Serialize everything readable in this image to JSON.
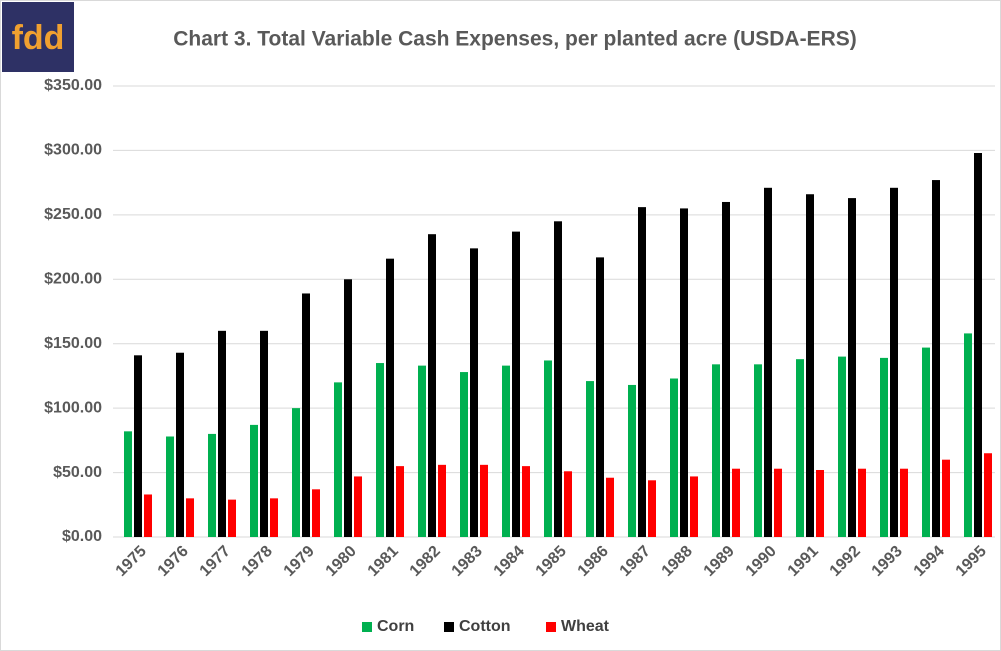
{
  "logo": "fdd",
  "chart_data": {
    "type": "bar",
    "title": "Chart 3. Total Variable Cash Expenses, per planted acre (USDA-ERS)",
    "categories": [
      "1975",
      "1976",
      "1977",
      "1978",
      "1979",
      "1980",
      "1981",
      "1982",
      "1983",
      "1984",
      "1985",
      "1986",
      "1987",
      "1988",
      "1989",
      "1990",
      "1991",
      "1992",
      "1993",
      "1994",
      "1995"
    ],
    "series": [
      {
        "name": "Corn",
        "color": "#00b050",
        "values": [
          82,
          78,
          80,
          87,
          100,
          120,
          135,
          133,
          128,
          133,
          137,
          121,
          118,
          123,
          134,
          134,
          138,
          140,
          139,
          147,
          158
        ]
      },
      {
        "name": "Cotton",
        "color": "#000000",
        "values": [
          141,
          143,
          160,
          160,
          189,
          200,
          216,
          235,
          224,
          237,
          245,
          217,
          256,
          255,
          260,
          271,
          266,
          263,
          271,
          277,
          298
        ]
      },
      {
        "name": "Wheat",
        "color": "#ff0000",
        "values": [
          33,
          30,
          29,
          30,
          37,
          47,
          55,
          56,
          56,
          55,
          51,
          46,
          44,
          47,
          53,
          53,
          52,
          53,
          53,
          60,
          65
        ]
      }
    ],
    "ylim": [
      0,
      350
    ],
    "yticks": [
      {
        "value": 0,
        "label": "$0.00"
      },
      {
        "value": 50,
        "label": "$50.00"
      },
      {
        "value": 100,
        "label": "$100.00"
      },
      {
        "value": 150,
        "label": "$150.00"
      },
      {
        "value": 200,
        "label": "$200.00"
      },
      {
        "value": 250,
        "label": "$250.00"
      },
      {
        "value": 300,
        "label": "$300.00"
      },
      {
        "value": 350,
        "label": "$350.00"
      }
    ],
    "grid": true,
    "legend": "bottom"
  }
}
